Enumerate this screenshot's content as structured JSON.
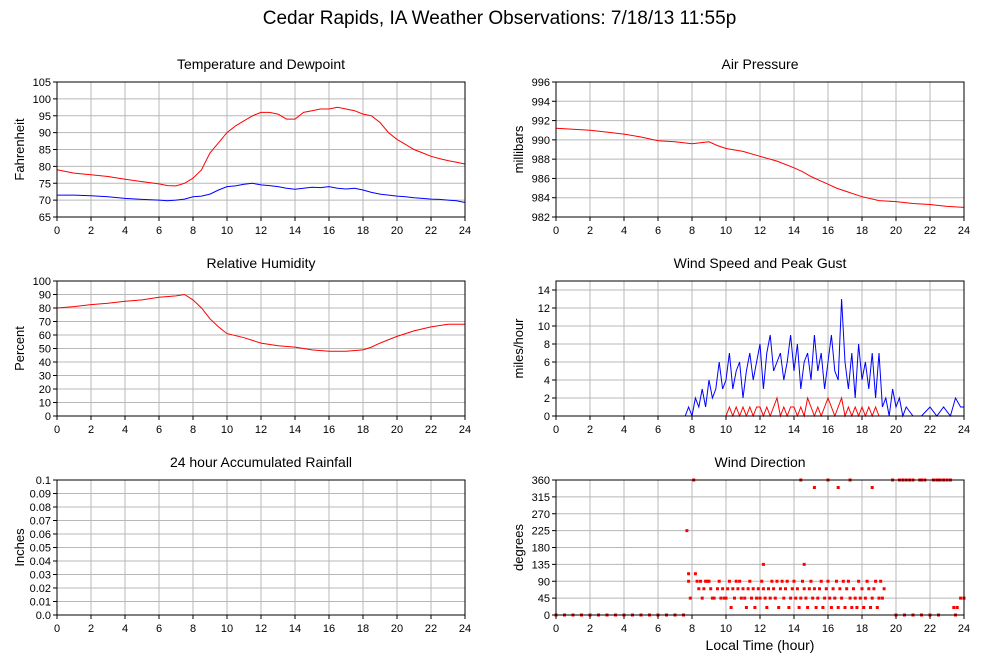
{
  "page": {
    "title": "Cedar Rapids, IA Weather Observations: 7/18/13 11:55p"
  },
  "colors": {
    "red": "#ff0000",
    "blue": "#0000ff",
    "grid": "#b8b8b8",
    "frame": "#000000"
  },
  "chart_data": [
    {
      "id": "temp",
      "type": "line",
      "title": "Temperature and Dewpoint",
      "xlabel": "",
      "ylabel": "Fahrenheit",
      "xlim": [
        0,
        24
      ],
      "ylim": [
        65,
        105
      ],
      "xticks": [
        0,
        2,
        4,
        6,
        8,
        10,
        12,
        14,
        16,
        18,
        20,
        22,
        24
      ],
      "yticks": [
        65,
        70,
        75,
        80,
        85,
        90,
        95,
        100,
        105
      ],
      "grid": true,
      "series": [
        {
          "color": "#ff0000",
          "x": [
            0,
            1,
            2,
            3,
            4,
            5,
            6,
            6.5,
            7,
            7.5,
            8,
            8.5,
            9,
            9.5,
            10,
            10.5,
            11,
            11.5,
            12,
            12.5,
            13,
            13.5,
            14,
            14.5,
            15,
            15.5,
            16,
            16.5,
            17,
            17.5,
            18,
            18.5,
            19,
            19.5,
            20,
            20.5,
            21,
            21.5,
            22,
            22.5,
            23,
            23.5,
            24
          ],
          "y": [
            79,
            78,
            77.5,
            77,
            76.2,
            75.5,
            74.8,
            74.3,
            74.2,
            75,
            76.5,
            79,
            84,
            87,
            90,
            92,
            93.5,
            95,
            96,
            96,
            95.5,
            94,
            94,
            96,
            96.5,
            97,
            97,
            97.5,
            97,
            96.5,
            95.5,
            95,
            93,
            90,
            88,
            86.5,
            85,
            84,
            83,
            82.3,
            81.7,
            81.2,
            80.7
          ]
        },
        {
          "color": "#0000ff",
          "x": [
            0,
            1,
            2,
            3,
            4,
            5,
            6,
            6.5,
            7,
            7.5,
            8,
            8.5,
            9,
            9.5,
            10,
            10.5,
            11,
            11.5,
            12,
            12.5,
            13,
            13.5,
            14,
            14.5,
            15,
            15.5,
            16,
            16.5,
            17,
            17.5,
            18,
            18.5,
            19,
            19.5,
            20,
            20.5,
            21,
            21.5,
            22,
            22.5,
            23,
            23.5,
            24
          ],
          "y": [
            71.5,
            71.5,
            71.3,
            71,
            70.5,
            70.2,
            70,
            69.8,
            70,
            70.3,
            71,
            71.2,
            71.8,
            73,
            74,
            74.2,
            74.7,
            75,
            74.5,
            74.3,
            74,
            73.5,
            73.2,
            73.5,
            73.8,
            73.7,
            74,
            73.5,
            73.3,
            73.5,
            73,
            72.3,
            71.8,
            71.5,
            71.2,
            71,
            70.7,
            70.5,
            70.3,
            70.2,
            70,
            69.8,
            69.3
          ]
        }
      ]
    },
    {
      "id": "pressure",
      "type": "line",
      "title": "Air Pressure",
      "xlabel": "",
      "ylabel": "millibars",
      "xlim": [
        0,
        24
      ],
      "ylim": [
        982,
        996
      ],
      "xticks": [
        0,
        2,
        4,
        6,
        8,
        10,
        12,
        14,
        16,
        18,
        20,
        22,
        24
      ],
      "yticks": [
        982,
        984,
        986,
        988,
        990,
        992,
        994,
        996
      ],
      "grid": true,
      "series": [
        {
          "color": "#ff0000",
          "x": [
            0,
            1,
            2,
            3,
            4,
            5,
            6,
            7,
            8,
            8.5,
            9,
            9.5,
            10,
            11,
            12,
            13,
            14,
            14.5,
            15,
            15.5,
            16,
            16.5,
            17,
            18,
            19,
            20,
            21,
            22,
            23,
            24
          ],
          "y": [
            991.2,
            991.1,
            991,
            990.8,
            990.6,
            990.3,
            989.9,
            989.8,
            989.6,
            989.7,
            989.8,
            989.4,
            989.1,
            988.8,
            988.3,
            987.8,
            987.1,
            986.7,
            986.2,
            985.8,
            985.4,
            985,
            984.7,
            984.1,
            983.7,
            983.6,
            983.4,
            983.3,
            983.1,
            983
          ]
        }
      ]
    },
    {
      "id": "humidity",
      "type": "line",
      "title": "Relative Humidity",
      "xlabel": "",
      "ylabel": "Percent",
      "xlim": [
        0,
        24
      ],
      "ylim": [
        0,
        100
      ],
      "xticks": [
        0,
        2,
        4,
        6,
        8,
        10,
        12,
        14,
        16,
        18,
        20,
        22,
        24
      ],
      "yticks": [
        0,
        10,
        20,
        30,
        40,
        50,
        60,
        70,
        80,
        90,
        100
      ],
      "grid": true,
      "series": [
        {
          "color": "#ff0000",
          "x": [
            0,
            1,
            2,
            3,
            4,
            5,
            6,
            7,
            7.5,
            8,
            8.5,
            9,
            9.5,
            10,
            11,
            12,
            13,
            14,
            15,
            16,
            17,
            18,
            18.5,
            19,
            20,
            21,
            22,
            23,
            24
          ],
          "y": [
            80,
            81,
            82.5,
            83.5,
            85,
            86,
            88,
            89,
            90,
            86,
            80,
            72,
            66,
            61,
            58,
            54,
            52,
            51,
            49,
            48,
            48,
            49,
            51,
            54,
            59,
            63,
            66,
            68,
            68
          ]
        }
      ]
    },
    {
      "id": "wind",
      "type": "line",
      "title": "Wind Speed and Peak Gust",
      "xlabel": "",
      "ylabel": "miles/hour",
      "xlim": [
        0,
        24
      ],
      "ylim": [
        0,
        15
      ],
      "xticks": [
        0,
        2,
        4,
        6,
        8,
        10,
        12,
        14,
        16,
        18,
        20,
        22,
        24
      ],
      "yticks": [
        0,
        2,
        4,
        6,
        8,
        10,
        12,
        14
      ],
      "grid": true,
      "series": [
        {
          "color": "#0000ff",
          "x": [
            0,
            7.6,
            7.8,
            8,
            8.2,
            8.4,
            8.6,
            8.8,
            9,
            9.2,
            9.4,
            9.6,
            9.8,
            10,
            10.2,
            10.4,
            10.6,
            10.8,
            11,
            11.2,
            11.4,
            11.6,
            11.8,
            12,
            12.2,
            12.4,
            12.6,
            12.8,
            13,
            13.2,
            13.4,
            13.6,
            13.8,
            14,
            14.2,
            14.4,
            14.6,
            14.8,
            15,
            15.2,
            15.4,
            15.6,
            15.8,
            16,
            16.2,
            16.4,
            16.6,
            16.8,
            17,
            17.2,
            17.4,
            17.6,
            17.8,
            18,
            18.2,
            18.4,
            18.6,
            18.8,
            19,
            19.2,
            19.4,
            19.6,
            19.8,
            20,
            20.2,
            20.4,
            20.6,
            21,
            21.5,
            22,
            22.4,
            22.8,
            23.2,
            23.5,
            23.8,
            24
          ],
          "y": [
            0,
            0,
            1,
            0,
            2,
            1,
            3,
            1,
            4,
            2,
            3,
            6,
            3,
            4,
            7,
            3,
            5,
            6,
            2,
            5,
            7,
            4,
            6,
            8,
            3,
            7,
            9,
            5,
            6,
            7,
            4,
            6,
            9,
            5,
            8,
            3,
            6,
            7,
            4,
            9,
            5,
            7,
            3,
            6,
            9,
            5,
            4,
            13,
            6,
            3,
            7,
            2,
            8,
            4,
            6,
            3,
            7,
            2,
            7,
            1,
            2,
            0,
            3,
            1,
            2,
            0,
            1,
            0,
            0,
            1,
            0,
            1,
            0,
            2,
            1,
            1
          ]
        },
        {
          "color": "#ff0000",
          "x": [
            0,
            10,
            10.2,
            10.4,
            10.6,
            10.8,
            11,
            11.2,
            11.4,
            11.6,
            11.8,
            12,
            12.2,
            12.4,
            12.6,
            12.8,
            13,
            13.2,
            13.4,
            13.6,
            13.8,
            14,
            14.2,
            14.4,
            14.6,
            14.8,
            15,
            15.2,
            15.4,
            15.6,
            15.8,
            16,
            16.2,
            16.4,
            16.6,
            16.8,
            17,
            17.2,
            17.4,
            17.6,
            17.8,
            18,
            18.2,
            18.4,
            18.6,
            18.8,
            19,
            24
          ],
          "y": [
            0,
            0,
            1,
            0,
            1,
            0,
            1,
            0,
            1,
            0,
            1,
            1,
            0,
            1,
            0,
            1,
            2,
            0,
            1,
            0,
            1,
            1,
            0,
            1,
            0,
            2,
            1,
            0,
            1,
            0,
            1,
            2,
            1,
            0,
            1,
            2,
            0,
            1,
            0,
            1,
            0,
            1,
            0,
            1,
            0,
            1,
            0,
            0
          ]
        }
      ]
    },
    {
      "id": "rain",
      "type": "line",
      "title": "24 hour Accumulated Rainfall",
      "xlabel": "",
      "ylabel": "Inches",
      "xlim": [
        0,
        24
      ],
      "ylim": [
        0,
        0.1
      ],
      "xticks": [
        0,
        2,
        4,
        6,
        8,
        10,
        12,
        14,
        16,
        18,
        20,
        22,
        24
      ],
      "yticks": [
        0.0,
        0.01,
        0.02,
        0.03,
        0.04,
        0.05,
        0.06,
        0.07,
        0.08,
        0.09,
        0.1
      ],
      "ytick_labels": [
        "0.0",
        "0.01",
        "0.02",
        "0.03",
        "0.04",
        "0.05",
        "0.06",
        "0.07",
        "0.08",
        "0.09",
        "0.1"
      ],
      "grid": true,
      "series": [
        {
          "color": "#ff0000",
          "x": [
            0,
            24
          ],
          "y": [
            0,
            0
          ]
        }
      ]
    },
    {
      "id": "winddir",
      "type": "scatter",
      "title": "Wind Direction",
      "xlabel": "Local Time (hour)",
      "ylabel": "degrees",
      "xlim": [
        0,
        24
      ],
      "ylim": [
        0,
        360
      ],
      "xticks": [
        0,
        2,
        4,
        6,
        8,
        10,
        12,
        14,
        16,
        18,
        20,
        22,
        24
      ],
      "yticks": [
        0,
        45,
        90,
        135,
        180,
        225,
        270,
        315,
        360
      ],
      "grid": true,
      "series": [
        {
          "color": "#ff0000",
          "x": [
            7.7,
            7.8,
            7.9,
            8.1,
            8.3,
            8.4,
            8.5,
            8.6,
            8.7,
            8.8,
            8.9,
            9,
            9.1,
            9.2,
            9.3,
            9.5,
            9.6,
            9.7,
            9.8,
            9.9,
            10,
            10.1,
            10.2,
            10.3,
            10.4,
            10.5,
            10.6,
            10.7,
            10.8,
            10.9,
            11,
            11.1,
            11.2,
            11.3,
            11.4,
            11.5,
            11.6,
            11.7,
            11.8,
            11.9,
            12,
            12.1,
            12.2,
            12.3,
            12.4,
            12.5,
            12.6,
            12.7,
            12.8,
            12.9,
            13,
            13.1,
            13.2,
            13.3,
            13.4,
            13.5,
            13.6,
            13.7,
            13.8,
            13.9,
            14,
            14.1,
            14.2,
            14.3,
            14.4,
            14.5,
            14.6,
            14.7,
            14.8,
            14.9,
            15,
            15.1,
            15.2,
            15.3,
            15.4,
            15.5,
            15.6,
            15.7,
            15.8,
            15.9,
            16,
            16.1,
            16.2,
            16.3,
            16.4,
            16.5,
            16.6,
            16.7,
            16.8,
            16.9,
            17,
            17.1,
            17.2,
            17.3,
            17.4,
            17.5,
            17.6,
            17.7,
            17.8,
            17.9,
            18,
            18.1,
            18.2,
            18.3,
            18.4,
            18.5,
            18.6,
            18.7,
            18.8,
            18.9,
            19,
            19.1,
            19.2,
            19.3,
            20.4,
            20.6,
            20.8,
            21,
            21.4,
            21.7,
            22.2,
            22.4,
            22.6,
            22.8,
            23,
            23.2,
            23.4,
            23.6,
            23.8,
            24,
            14.4,
            15.2,
            16,
            16.6,
            17.3,
            18.6,
            19.8,
            20.2,
            21.5,
            22.2,
            22.5,
            8.2,
            7.8,
            12.2,
            14.6
          ],
          "y": [
            225,
            90,
            45,
            360,
            90,
            70,
            90,
            45,
            70,
            90,
            90,
            90,
            70,
            45,
            45,
            70,
            90,
            45,
            70,
            45,
            45,
            70,
            90,
            20,
            70,
            45,
            90,
            70,
            90,
            45,
            70,
            45,
            20,
            70,
            90,
            45,
            70,
            20,
            45,
            70,
            45,
            90,
            70,
            45,
            20,
            70,
            45,
            90,
            70,
            45,
            90,
            20,
            70,
            90,
            45,
            70,
            90,
            20,
            45,
            70,
            90,
            45,
            70,
            20,
            45,
            90,
            70,
            45,
            20,
            70,
            90,
            45,
            70,
            20,
            45,
            70,
            90,
            20,
            45,
            70,
            90,
            45,
            20,
            70,
            45,
            90,
            20,
            70,
            45,
            90,
            20,
            70,
            90,
            45,
            20,
            70,
            45,
            20,
            90,
            45,
            70,
            20,
            45,
            90,
            70,
            20,
            45,
            70,
            90,
            20,
            45,
            90,
            45,
            70,
            360,
            360,
            360,
            360,
            360,
            360,
            360,
            360,
            360,
            360,
            360,
            360,
            20,
            20,
            45,
            45,
            360,
            340,
            360,
            340,
            360,
            340,
            360,
            360,
            360,
            360,
            360,
            110,
            110,
            135,
            135
          ]
        },
        {
          "color": "#ff0000",
          "x": [
            0,
            0.5,
            1,
            1.5,
            2,
            2.5,
            3,
            3.5,
            4,
            4.5,
            5,
            5.5,
            6,
            6.5,
            7,
            7.5,
            20,
            20.5,
            21,
            21.5,
            22,
            22.5,
            23.5
          ],
          "y": [
            0,
            0,
            0,
            0,
            0,
            0,
            0,
            0,
            0,
            0,
            0,
            0,
            0,
            0,
            0,
            0,
            0,
            0,
            0,
            0,
            0,
            0,
            0
          ]
        }
      ]
    }
  ]
}
